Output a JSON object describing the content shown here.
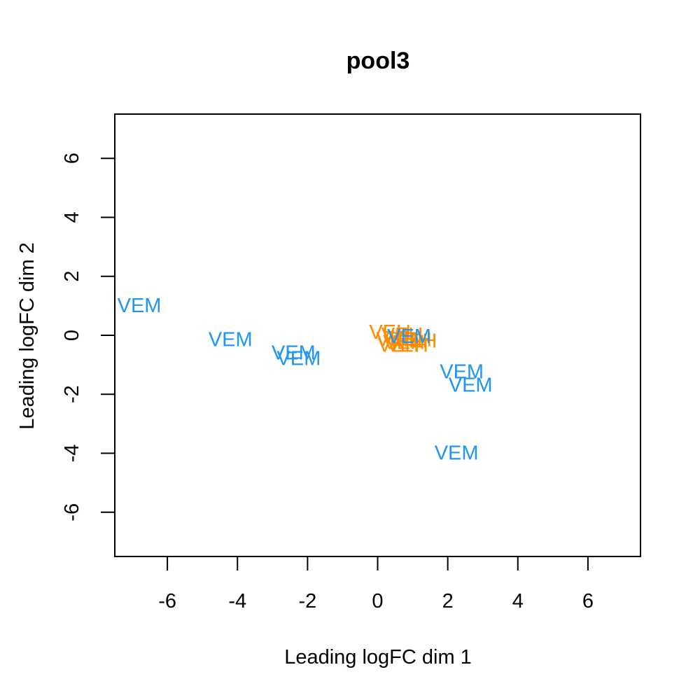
{
  "chart_data": {
    "type": "scatter",
    "title": "pool3",
    "xlabel": "Leading logFC dim 1",
    "ylabel": "Leading logFC dim 2",
    "xlim": [
      -7.5,
      7.5
    ],
    "ylim": [
      -7.5,
      7.5
    ],
    "xticks": [
      "-6",
      "-4",
      "-2",
      "0",
      "2",
      "4",
      "6"
    ],
    "yticks": [
      "-6",
      "-4",
      "-2",
      "0",
      "2",
      "4",
      "6"
    ],
    "grid": false,
    "legend": "none",
    "colors": {
      "VEM": "#2196F3",
      "VEH": "#FF8C00"
    },
    "points": [
      {
        "label": "VEH",
        "x": 0.35,
        "y": 0.1
      },
      {
        "label": "VEH",
        "x": 0.55,
        "y": -0.15
      },
      {
        "label": "VEH",
        "x": 0.75,
        "y": -0.25
      },
      {
        "label": "VEH",
        "x": 0.95,
        "y": -0.15
      },
      {
        "label": "VEH",
        "x": 0.6,
        "y": -0.35
      },
      {
        "label": "VEH",
        "x": 0.85,
        "y": -0.35
      },
      {
        "label": "VEH",
        "x": 1.1,
        "y": -0.2
      },
      {
        "label": "VEH",
        "x": 0.7,
        "y": 0.0
      },
      {
        "label": "VEM",
        "x": -6.8,
        "y": 1.0
      },
      {
        "label": "VEM",
        "x": -4.2,
        "y": -0.15
      },
      {
        "label": "VEM",
        "x": -2.4,
        "y": -0.6
      },
      {
        "label": "VEM",
        "x": -2.25,
        "y": -0.8
      },
      {
        "label": "VEM",
        "x": 0.9,
        "y": -0.05
      },
      {
        "label": "VEM",
        "x": 2.4,
        "y": -1.25
      },
      {
        "label": "VEM",
        "x": 2.65,
        "y": -1.7
      },
      {
        "label": "VEM",
        "x": 2.25,
        "y": -4.0
      }
    ]
  }
}
